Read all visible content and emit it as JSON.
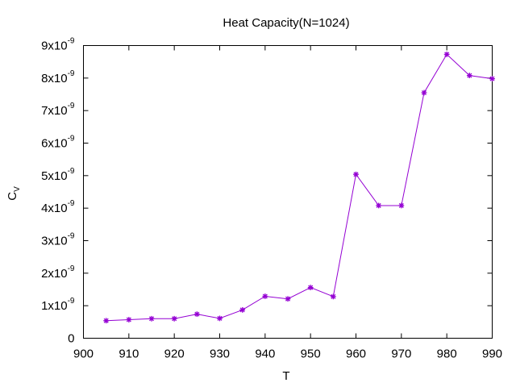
{
  "chart_data": {
    "type": "line",
    "title": "Heat Capacity(N=1024)",
    "xlabel": "T",
    "ylabel": {
      "base": "C",
      "subscript": "V"
    },
    "xlim": [
      900,
      990
    ],
    "ylim": [
      0,
      9e-09
    ],
    "grid": false,
    "x_ticks": [
      {
        "value": 900,
        "label": "900"
      },
      {
        "value": 910,
        "label": "910"
      },
      {
        "value": 920,
        "label": "920"
      },
      {
        "value": 930,
        "label": "930"
      },
      {
        "value": 940,
        "label": "940"
      },
      {
        "value": 950,
        "label": "950"
      },
      {
        "value": 960,
        "label": "960"
      },
      {
        "value": 970,
        "label": "970"
      },
      {
        "value": 980,
        "label": "980"
      },
      {
        "value": 990,
        "label": "990"
      }
    ],
    "y_ticks": [
      {
        "value": 0,
        "mantissa": "0",
        "exponent": ""
      },
      {
        "value": 1e-09,
        "mantissa": "1x10",
        "exponent": "-9"
      },
      {
        "value": 2e-09,
        "mantissa": "2x10",
        "exponent": "-9"
      },
      {
        "value": 3e-09,
        "mantissa": "3x10",
        "exponent": "-9"
      },
      {
        "value": 4e-09,
        "mantissa": "4x10",
        "exponent": "-9"
      },
      {
        "value": 5e-09,
        "mantissa": "5x10",
        "exponent": "-9"
      },
      {
        "value": 6e-09,
        "mantissa": "6x10",
        "exponent": "-9"
      },
      {
        "value": 7e-09,
        "mantissa": "7x10",
        "exponent": "-9"
      },
      {
        "value": 8e-09,
        "mantissa": "8x10",
        "exponent": "-9"
      },
      {
        "value": 9e-09,
        "mantissa": "9x10",
        "exponent": "-9"
      }
    ],
    "series": [
      {
        "color": "#9400d3",
        "x": [
          905,
          910,
          915,
          920,
          925,
          930,
          935,
          940,
          945,
          950,
          955,
          960,
          965,
          970,
          975,
          980,
          985,
          990
        ],
        "y": [
          5.4e-10,
          5.7e-10,
          6e-10,
          6e-10,
          7.4e-10,
          6.1e-10,
          8.7e-10,
          1.29e-09,
          1.21e-09,
          1.56e-09,
          1.28e-09,
          5.04e-09,
          4.08e-09,
          4.08e-09,
          7.55e-09,
          8.73e-09,
          8.08e-09,
          7.98e-09
        ]
      }
    ]
  }
}
